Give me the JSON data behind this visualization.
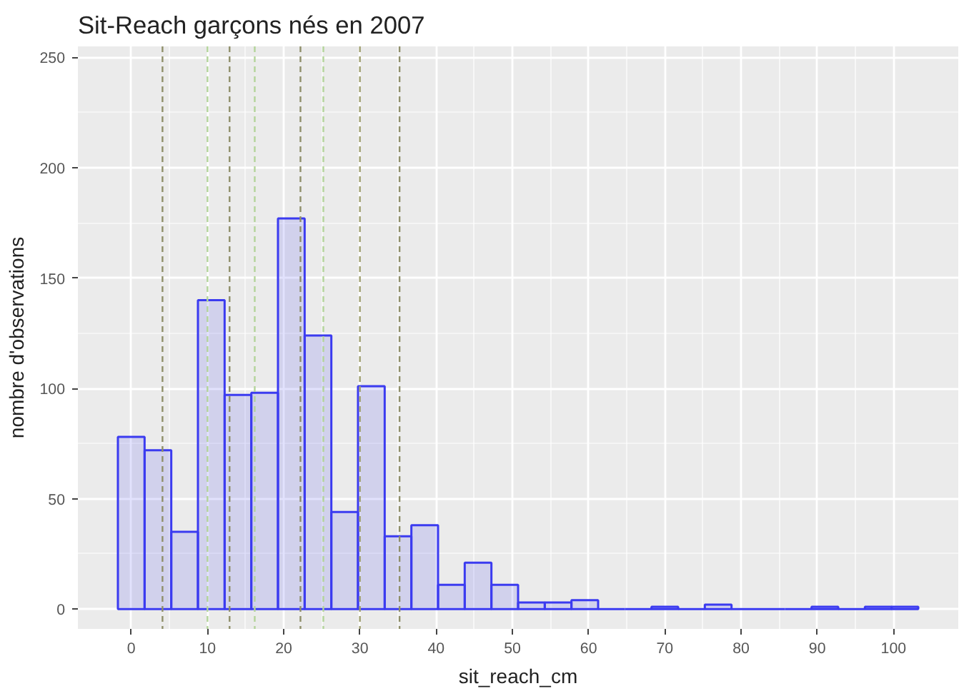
{
  "chart_data": {
    "type": "histogram",
    "title": "Sit-Reach garçons nés en 2007",
    "xlabel": "sit_reach_cm",
    "ylabel": "nombre d'observations",
    "bins": [
      -1.75,
      1.75,
      5.25,
      8.75,
      12.25,
      15.75,
      19.25,
      22.75,
      26.25,
      29.75,
      33.25,
      36.75,
      40.25,
      43.75,
      47.25,
      50.75,
      54.25,
      57.75,
      61.25,
      64.75,
      68.25,
      71.75,
      75.25,
      78.75,
      82.25,
      85.75,
      89.25,
      92.75,
      96.25,
      99.75,
      103.25
    ],
    "values": [
      78,
      72,
      35,
      140,
      97,
      98,
      177,
      124,
      44,
      101,
      33,
      38,
      11,
      21,
      11,
      3,
      3,
      4,
      0,
      0,
      1,
      0,
      2,
      0,
      0,
      0,
      1,
      0,
      1,
      1
    ],
    "color": "#3b3bf0",
    "xlim": [
      -7,
      108.5
    ],
    "ylim": [
      -9,
      255
    ],
    "xticks": [
      0,
      10,
      20,
      30,
      40,
      50,
      60,
      70,
      80,
      90,
      100
    ],
    "yticks": [
      0,
      50,
      100,
      150,
      200,
      250
    ],
    "grid": true,
    "ref_lines": [
      {
        "axis": "x",
        "value": 4.1,
        "color": "#8f8f6a",
        "line_style": "dashed"
      },
      {
        "axis": "x",
        "value": 10.0,
        "color": "#b3d49a",
        "line_style": "dashed"
      },
      {
        "axis": "x",
        "value": 12.9,
        "color": "#8f8f6a",
        "line_style": "dashed"
      },
      {
        "axis": "x",
        "value": 16.2,
        "color": "#b3d49a",
        "line_style": "dashed"
      },
      {
        "axis": "x",
        "value": 22.2,
        "color": "#8f8f6a",
        "line_style": "dashed"
      },
      {
        "axis": "x",
        "value": 25.2,
        "color": "#b3d49a",
        "line_style": "dashed"
      },
      {
        "axis": "x",
        "value": 30.0,
        "color": "#a0a070",
        "line_style": "dashed"
      },
      {
        "axis": "x",
        "value": 35.2,
        "color": "#8f8f6a",
        "line_style": "dashed"
      }
    ]
  }
}
